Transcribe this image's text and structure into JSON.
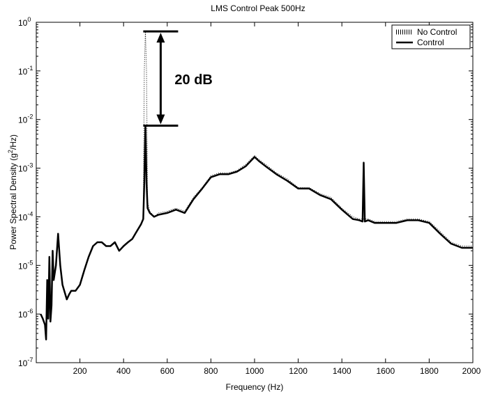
{
  "chart_data": {
    "type": "line",
    "title": "LMS Control Peak 500Hz",
    "xlabel": "Frequency (Hz)",
    "ylabel_parts": [
      "Power Spectral Density (g",
      "2",
      "/Hz)"
    ],
    "xlim": [
      0,
      2000
    ],
    "ylim": [
      1e-07,
      1
    ],
    "yscale": "log",
    "grid": false,
    "legend_placement": "top-right",
    "x_ticks": [
      {
        "value": 200,
        "label": "200"
      },
      {
        "value": 400,
        "label": "400"
      },
      {
        "value": 600,
        "label": "600"
      },
      {
        "value": 800,
        "label": "800"
      },
      {
        "value": 1000,
        "label": "1000"
      },
      {
        "value": 1200,
        "label": "1200"
      },
      {
        "value": 1400,
        "label": "1400"
      },
      {
        "value": 1600,
        "label": "1600"
      },
      {
        "value": 1800,
        "label": "1800"
      },
      {
        "value": 2000,
        "label": "2000"
      }
    ],
    "y_ticks": [
      {
        "value": 1,
        "base": "10",
        "exp": "0"
      },
      {
        "value": 0.1,
        "base": "10",
        "exp": "-1"
      },
      {
        "value": 0.01,
        "base": "10",
        "exp": "-2"
      },
      {
        "value": 0.001,
        "base": "10",
        "exp": "-3"
      },
      {
        "value": 0.0001,
        "base": "10",
        "exp": "-4"
      },
      {
        "value": 1e-05,
        "base": "10",
        "exp": "-5"
      },
      {
        "value": 1e-06,
        "base": "10",
        "exp": "-6"
      },
      {
        "value": 1e-07,
        "base": "10",
        "exp": "-7"
      }
    ],
    "series": [
      {
        "name": "No Control",
        "style": "dotted",
        "color": "#000000",
        "x": [
          20,
          30,
          40,
          45,
          50,
          55,
          60,
          65,
          70,
          75,
          80,
          90,
          100,
          110,
          120,
          140,
          150,
          160,
          180,
          200,
          220,
          240,
          260,
          280,
          300,
          320,
          340,
          360,
          380,
          400,
          420,
          440,
          460,
          480,
          490,
          495,
          500,
          505,
          510,
          520,
          540,
          560,
          600,
          640,
          680,
          720,
          760,
          800,
          840,
          880,
          920,
          960,
          1000,
          1020,
          1050,
          1100,
          1150,
          1200,
          1250,
          1300,
          1350,
          1400,
          1450,
          1480,
          1500,
          1520,
          1550,
          1600,
          1650,
          1700,
          1750,
          1800,
          1850,
          1900,
          1950,
          2000
        ],
        "y": [
          1e-06,
          8e-07,
          6e-07,
          3e-07,
          5e-06,
          8e-07,
          1.5e-05,
          7e-07,
          1.5e-06,
          2e-05,
          5e-06,
          1e-05,
          4.5e-05,
          1e-05,
          4e-06,
          2e-06,
          2.5e-06,
          3e-06,
          3e-06,
          4e-06,
          8e-06,
          1.5e-05,
          2.5e-05,
          3e-05,
          3e-05,
          2.5e-05,
          2.5e-05,
          3e-05,
          2e-05,
          2.5e-05,
          3e-05,
          3.5e-05,
          5e-05,
          7e-05,
          9e-05,
          0.1,
          0.65,
          0.1,
          0.0002,
          0.00013,
          0.0001,
          0.00012,
          0.00013,
          0.00015,
          0.00013,
          0.00025,
          0.0004,
          0.0007,
          0.0008,
          0.0008,
          0.0009,
          0.0012,
          0.0018,
          0.0015,
          0.0012,
          0.0008,
          0.0006,
          0.0004,
          0.0004,
          0.0003,
          0.00025,
          0.00015,
          0.0001,
          9e-05,
          9e-05,
          9e-05,
          8e-05,
          8e-05,
          8e-05,
          9e-05,
          9e-05,
          8e-05,
          5e-05,
          3e-05,
          2.5e-05,
          2.5e-05
        ]
      },
      {
        "name": "Control",
        "style": "solid",
        "color": "#000000",
        "x": [
          20,
          30,
          40,
          45,
          50,
          55,
          60,
          65,
          70,
          75,
          80,
          90,
          100,
          110,
          120,
          140,
          150,
          160,
          180,
          200,
          220,
          240,
          260,
          280,
          300,
          320,
          340,
          360,
          380,
          400,
          420,
          440,
          460,
          480,
          490,
          495,
          500,
          505,
          510,
          520,
          540,
          560,
          600,
          640,
          680,
          720,
          760,
          800,
          840,
          880,
          920,
          960,
          1000,
          1020,
          1050,
          1100,
          1150,
          1200,
          1250,
          1300,
          1350,
          1400,
          1450,
          1480,
          1495,
          1500,
          1505,
          1520,
          1550,
          1600,
          1650,
          1700,
          1750,
          1800,
          1850,
          1900,
          1950,
          2000
        ],
        "y": [
          1e-06,
          8e-07,
          6e-07,
          3e-07,
          5e-06,
          8e-07,
          1.5e-05,
          7e-07,
          1.5e-06,
          2e-05,
          5e-06,
          1e-05,
          4.5e-05,
          1e-05,
          4e-06,
          2e-06,
          2.5e-06,
          3e-06,
          3e-06,
          4e-06,
          8e-06,
          1.5e-05,
          2.5e-05,
          3e-05,
          3e-05,
          2.5e-05,
          2.5e-05,
          3e-05,
          2e-05,
          2.5e-05,
          3e-05,
          3.5e-05,
          5e-05,
          7e-05,
          9e-05,
          0.0005,
          0.0075,
          0.0005,
          0.00015,
          0.00012,
          0.0001,
          0.00011,
          0.00012,
          0.00014,
          0.00012,
          0.00023,
          0.00038,
          0.00065,
          0.00075,
          0.00075,
          0.00085,
          0.0011,
          0.0017,
          0.0014,
          0.0011,
          0.00075,
          0.00055,
          0.00038,
          0.00038,
          0.00028,
          0.00023,
          0.00014,
          9e-05,
          8.5e-05,
          8e-05,
          0.0013,
          8e-05,
          8.5e-05,
          7.5e-05,
          7.5e-05,
          7.5e-05,
          8.5e-05,
          8.5e-05,
          7.5e-05,
          4.5e-05,
          2.8e-05,
          2.3e-05,
          2.3e-05
        ]
      }
    ],
    "annotations": [
      {
        "type": "double-arrow",
        "x": 570,
        "y_top": 0.65,
        "y_bottom": 0.0075,
        "label": "20 dB"
      }
    ]
  }
}
